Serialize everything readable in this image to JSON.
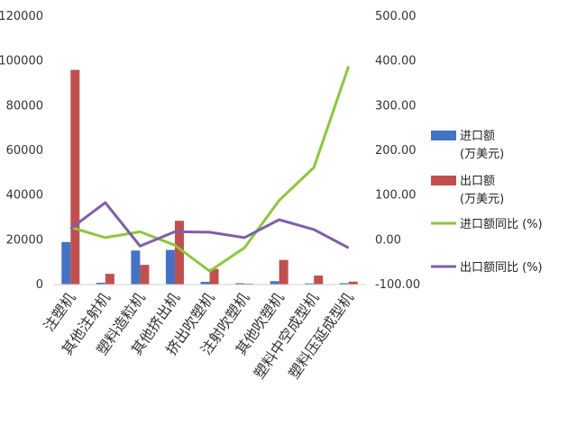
{
  "chart_data": {
    "type": "bar",
    "categories": [
      "注塑机",
      "其他注射机",
      "塑料造粒机",
      "其他挤出机",
      "挤出吹塑机",
      "注射吹塑机",
      "其他吹塑机",
      "塑料中空成型机",
      "塑料压延成型机"
    ],
    "series": [
      {
        "name": "进口额",
        "name_line2": "(万美元)",
        "type": "bar",
        "axis": "left",
        "color": "#4472C4",
        "values": [
          19000,
          800,
          15200,
          15500,
          1200,
          600,
          1500,
          500,
          600
        ]
      },
      {
        "name": "出口额",
        "name_line2": "(万美元)",
        "type": "bar",
        "axis": "left",
        "color": "#C0504D",
        "values": [
          96000,
          4800,
          8800,
          28500,
          7000,
          400,
          11000,
          4000,
          1300
        ]
      },
      {
        "name": "进口额同比 (%)",
        "type": "line",
        "axis": "right",
        "color": "#8DC63F",
        "values": [
          28,
          5,
          18,
          -12,
          -70,
          -18,
          88,
          162,
          388
        ]
      },
      {
        "name": "出口额同比 (%)",
        "type": "line",
        "axis": "right",
        "color": "#7F5FA8",
        "values": [
          25,
          83,
          -14,
          18,
          17,
          5,
          45,
          23,
          -18
        ]
      }
    ],
    "y_left": {
      "min": 0,
      "max": 120000,
      "ticks": [
        "0",
        "20000",
        "40000",
        "60000",
        "80000",
        "100000",
        "120000"
      ]
    },
    "y_right": {
      "min": -100,
      "max": 500,
      "ticks": [
        "-100.00",
        "0.00",
        "100.00",
        "200.00",
        "300.00",
        "400.00",
        "500.00"
      ]
    },
    "grid": false,
    "legend_position": "right"
  }
}
